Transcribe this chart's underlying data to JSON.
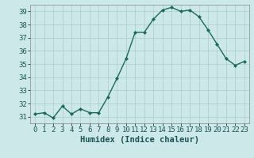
{
  "x": [
    0,
    1,
    2,
    3,
    4,
    5,
    6,
    7,
    8,
    9,
    10,
    11,
    12,
    13,
    14,
    15,
    16,
    17,
    18,
    19,
    20,
    21,
    22,
    23
  ],
  "y": [
    31.2,
    31.3,
    30.9,
    31.8,
    31.2,
    31.6,
    31.3,
    31.3,
    32.5,
    33.9,
    35.4,
    37.4,
    37.4,
    38.4,
    39.1,
    39.3,
    39.0,
    39.1,
    38.6,
    37.6,
    36.5,
    35.4,
    34.9,
    35.2
  ],
  "line_color": "#1a6b5a",
  "marker": "D",
  "marker_size": 2.0,
  "bg_color": "#cce8e8",
  "grid_color": "#aacccc",
  "xlabel": "Humidex (Indice chaleur)",
  "xlim": [
    -0.5,
    23.5
  ],
  "ylim": [
    30.5,
    39.5
  ],
  "yticks": [
    31,
    32,
    33,
    34,
    35,
    36,
    37,
    38,
    39
  ],
  "xticks": [
    0,
    1,
    2,
    3,
    4,
    5,
    6,
    7,
    8,
    9,
    10,
    11,
    12,
    13,
    14,
    15,
    16,
    17,
    18,
    19,
    20,
    21,
    22,
    23
  ],
  "xlabel_fontsize": 7.5,
  "tick_fontsize": 6.5,
  "linewidth": 1.0
}
